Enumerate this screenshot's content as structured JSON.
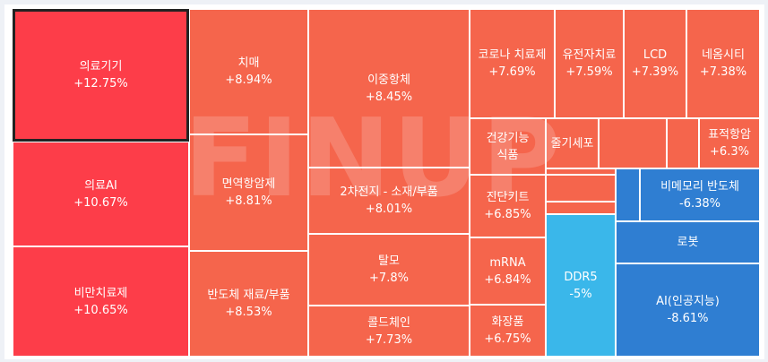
{
  "chart_data": {
    "type": "heatmap",
    "subtype": "treemap",
    "watermark": "FINUP",
    "colors": {
      "strong_up": "#fd3d49",
      "up": "#f5654c",
      "down_light": "#3ab7ea",
      "down": "#2f7ed2",
      "selected_border": "#222222"
    },
    "tiles": [
      {
        "name": "의료기기",
        "change": "+12.75%",
        "value": 12.75,
        "color": "#fd3d49",
        "selected": true
      },
      {
        "name": "의료AI",
        "change": "+10.67%",
        "value": 10.67,
        "color": "#fd3d49"
      },
      {
        "name": "비만치료제",
        "change": "+10.65%",
        "value": 10.65,
        "color": "#fd3d49"
      },
      {
        "name": "치매",
        "change": "+8.94%",
        "value": 8.94,
        "color": "#f5654c"
      },
      {
        "name": "면역항암제",
        "change": "+8.81%",
        "value": 8.81,
        "color": "#f5654c"
      },
      {
        "name": "반도체 재료/부품",
        "change": "+8.53%",
        "value": 8.53,
        "color": "#f5654c"
      },
      {
        "name": "이중항체",
        "change": "+8.45%",
        "value": 8.45,
        "color": "#f5654c"
      },
      {
        "name": "2차전지 - 소재/부품",
        "change": "+8.01%",
        "value": 8.01,
        "color": "#f5654c"
      },
      {
        "name": "탈모",
        "change": "+7.8%",
        "value": 7.8,
        "color": "#f5654c"
      },
      {
        "name": "콜드체인",
        "change": "+7.73%",
        "value": 7.73,
        "color": "#f5654c"
      },
      {
        "name": "코로나 치료제",
        "change": "+7.69%",
        "value": 7.69,
        "color": "#f5654c"
      },
      {
        "name": "유전자치료",
        "change": "+7.59%",
        "value": 7.59,
        "color": "#f5654c"
      },
      {
        "name": "LCD",
        "change": "+7.39%",
        "value": 7.39,
        "color": "#f5654c"
      },
      {
        "name": "네옴시티",
        "change": "+7.38%",
        "value": 7.38,
        "color": "#f5654c"
      },
      {
        "name": "건강기능식품",
        "change": "",
        "value": null,
        "color": "#f5654c",
        "wrap": true
      },
      {
        "name": "줄기세포",
        "change": "",
        "value": null,
        "color": "#f5654c",
        "wrap": true
      },
      {
        "name": "",
        "change": "",
        "value": null,
        "color": "#f5654c"
      },
      {
        "name": "",
        "change": "",
        "value": null,
        "color": "#f5654c"
      },
      {
        "name": "표적항암",
        "change": "+6.3%",
        "value": 6.3,
        "color": "#f5654c"
      },
      {
        "name": "진단키트",
        "change": "+6.85%",
        "value": 6.85,
        "color": "#f5654c"
      },
      {
        "name": "mRNA",
        "change": "+6.84%",
        "value": 6.84,
        "color": "#f5654c"
      },
      {
        "name": "화장품",
        "change": "+6.75%",
        "value": 6.75,
        "color": "#f5654c"
      },
      {
        "name": "",
        "change": "",
        "value": null,
        "color": "#f5654c"
      },
      {
        "name": "",
        "change": "",
        "value": null,
        "color": "#f5654c"
      },
      {
        "name": "",
        "change": "",
        "value": null,
        "color": "#f5654c"
      },
      {
        "name": "DDR5",
        "change": "-5%",
        "value": -5,
        "color": "#3ab7ea"
      },
      {
        "name": "",
        "change": "",
        "value": null,
        "color": "#2f7ed2"
      },
      {
        "name": "비메모리 반도체",
        "change": "-6.38%",
        "value": -6.38,
        "color": "#2f7ed2"
      },
      {
        "name": "로봇",
        "change": "",
        "value": null,
        "color": "#2f7ed2"
      },
      {
        "name": "AI(인공지능)",
        "change": "-8.61%",
        "value": -8.61,
        "color": "#2f7ed2"
      }
    ]
  }
}
